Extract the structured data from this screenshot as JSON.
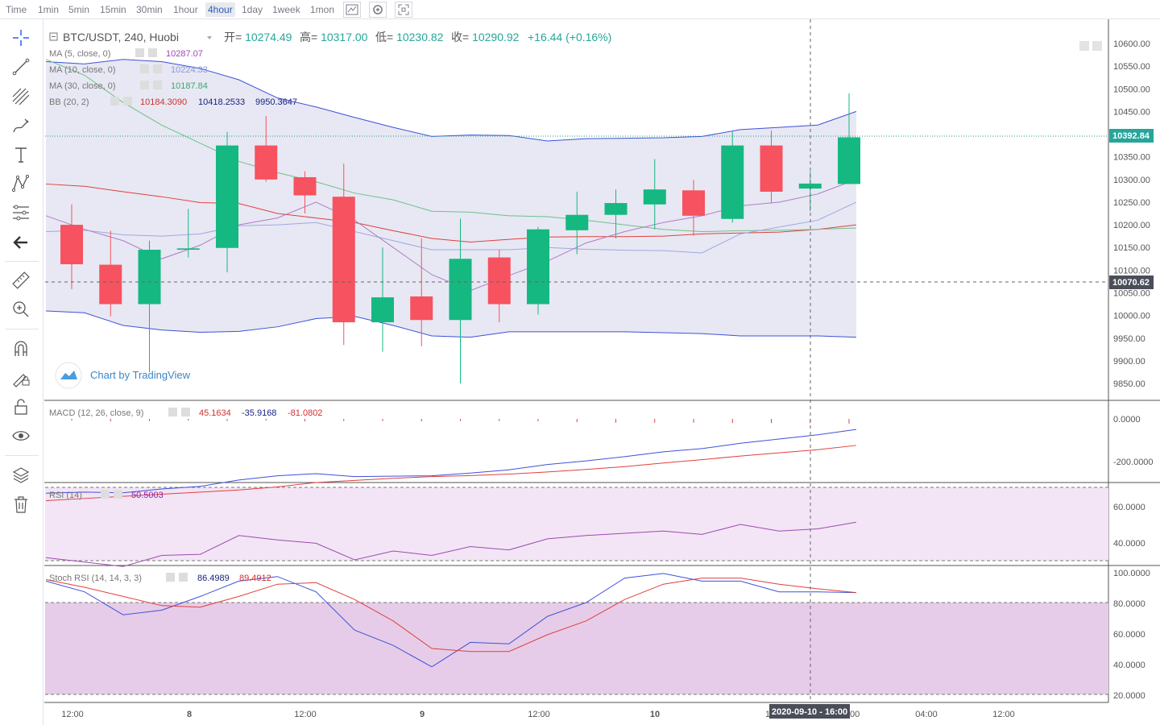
{
  "toolbar": {
    "timeframes": [
      "Time",
      "1min",
      "5min",
      "15min",
      "30min",
      "1hour",
      "4hour",
      "1day",
      "1week",
      "1mon"
    ],
    "active": "4hour",
    "icons": [
      "chart-style-icon",
      "settings-icon",
      "fullscreen-icon"
    ]
  },
  "sidebar": {
    "tools": [
      "crosshair-icon",
      "trendline-icon",
      "fib-icon",
      "brush-icon",
      "text-icon",
      "pattern-icon",
      "measure-lines-icon",
      "back-arrow-icon",
      "ruler-icon",
      "zoom-icon",
      "magnet-icon",
      "lock-draw-icon",
      "unlock-icon",
      "eye-icon",
      "layers-icon",
      "trash-icon"
    ]
  },
  "header": {
    "symbol": "BTC/USDT, 240, Huobi",
    "open_label": "开=",
    "open": "10274.49",
    "high_label": "高=",
    "high": "10317.00",
    "low_label": "低=",
    "low": "10230.82",
    "close_label": "收=",
    "close": "10290.92",
    "change": "+16.44 (+0.16%)"
  },
  "legend": {
    "ma5": {
      "label": "MA (5, close, 0)",
      "value": "10287.07",
      "color": "#9c4bb0"
    },
    "ma10": {
      "label": "MA (10, close, 0)",
      "value": "10224.33",
      "color": "#8b98d8"
    },
    "ma30": {
      "label": "MA (30, close, 0)",
      "value": "10187.84",
      "color": "#3fa66e"
    },
    "bb": {
      "label": "BB (20, 2)",
      "v1": "10184.3090",
      "v2": "10418.2533",
      "v3": "9950.3647"
    }
  },
  "watermark": "Chart by TradingView",
  "price_badges": {
    "current": "10392.84",
    "crosshair": "10070.62"
  },
  "time_badge": "2020-09-10 - 16:00",
  "time_labels": [
    "12:00",
    "8",
    "12:00",
    "9",
    "12:00",
    "10",
    "12",
    "00",
    "04:00",
    "12:00"
  ],
  "panes": {
    "macd": {
      "label": "MACD (12, 26, close, 9)",
      "v1": "45.1634",
      "v2": "-35.9168",
      "v3": "-81.0802",
      "ticks": [
        "0.0000",
        "-200.0000"
      ]
    },
    "rsi": {
      "label": "RSI (14)",
      "value": "50.5003",
      "ticks": [
        "60.0000",
        "40.0000"
      ]
    },
    "stoch": {
      "label": "Stoch RSI (14, 14, 3, 3)",
      "k": "86.4989",
      "d": "89.4912",
      "ticks": [
        "100.0000",
        "80.0000",
        "60.0000",
        "40.0000",
        "20.0000"
      ]
    }
  },
  "chart_data": {
    "type": "candlestick",
    "price_ticks": [
      "10600.00",
      "10550.00",
      "10500.00",
      "10450.00",
      "10400.00",
      "10350.00",
      "10300.00",
      "10250.00",
      "10200.00",
      "10150.00",
      "10100.00",
      "10050.00",
      "10000.00",
      "9950.00",
      "9900.00",
      "9850.00"
    ],
    "candles": [
      {
        "o": 10200,
        "h": 10245,
        "l": 10058,
        "c": 10113
      },
      {
        "o": 10112,
        "h": 10187,
        "l": 9998,
        "c": 10025
      },
      {
        "o": 10025,
        "h": 10165,
        "l": 9875,
        "c": 10145
      },
      {
        "o": 10145,
        "h": 10235,
        "l": 10128,
        "c": 10148
      },
      {
        "o": 10149,
        "h": 10405,
        "l": 10095,
        "c": 10375
      },
      {
        "o": 10375,
        "h": 10440,
        "l": 10295,
        "c": 10300
      },
      {
        "o": 10305,
        "h": 10318,
        "l": 10225,
        "c": 10265
      },
      {
        "o": 10262,
        "h": 10335,
        "l": 9935,
        "c": 9985
      },
      {
        "o": 9985,
        "h": 10150,
        "l": 9920,
        "c": 10040
      },
      {
        "o": 10042,
        "h": 10170,
        "l": 9932,
        "c": 9990
      },
      {
        "o": 9990,
        "h": 10214,
        "l": 9850,
        "c": 10125
      },
      {
        "o": 10128,
        "h": 10145,
        "l": 9985,
        "c": 10025
      },
      {
        "o": 10025,
        "h": 10195,
        "l": 10002,
        "c": 10190
      },
      {
        "o": 10188,
        "h": 10273,
        "l": 10135,
        "c": 10222
      },
      {
        "o": 10222,
        "h": 10278,
        "l": 10170,
        "c": 10248
      },
      {
        "o": 10245,
        "h": 10345,
        "l": 10190,
        "c": 10278
      },
      {
        "o": 10276,
        "h": 10299,
        "l": 10176,
        "c": 10220
      },
      {
        "o": 10213,
        "h": 10406,
        "l": 10205,
        "c": 10375
      },
      {
        "o": 10375,
        "h": 10408,
        "l": 10249,
        "c": 10273
      },
      {
        "o": 10280,
        "h": 10318,
        "l": 10230,
        "c": 10291
      },
      {
        "o": 10290,
        "h": 10490,
        "l": 10290,
        "c": 10393
      }
    ],
    "bb_upper": [
      10560,
      10555,
      10565,
      10560,
      10545,
      10520,
      10480,
      10460,
      10437,
      10415,
      10395,
      10398,
      10397,
      10385,
      10390,
      10391,
      10392,
      10395,
      10410,
      10415,
      10420,
      10450
    ],
    "bb_lower": [
      10010,
      10006,
      9978,
      9968,
      9963,
      9965,
      9975,
      9993,
      9998,
      9978,
      9955,
      9952,
      9964,
      9964,
      9964,
      9964,
      9962,
      9960,
      9955,
      9955,
      9955,
      9952
    ],
    "bb_mid": [
      10290,
      10285,
      10273,
      10262,
      10249,
      10247,
      10225,
      10215,
      10205,
      10187,
      10170,
      10162,
      10168,
      10173,
      10174,
      10174,
      10175,
      10180,
      10182,
      10184,
      10190,
      10200
    ],
    "ma30": [
      10565,
      10530,
      10470,
      10420,
      10380,
      10340,
      10315,
      10295,
      10270,
      10255,
      10230,
      10228,
      10220,
      10218,
      10210,
      10200,
      10190,
      10185,
      10187,
      10188,
      10190,
      10193
    ],
    "ma10": [
      10185,
      10188,
      10178,
      10175,
      10180,
      10198,
      10200,
      10205,
      10185,
      10165,
      10145,
      10145,
      10145,
      10150,
      10146,
      10144,
      10143,
      10138,
      10180,
      10195,
      10210,
      10250
    ],
    "ma5": [
      10220,
      10190,
      10165,
      10125,
      10155,
      10200,
      10215,
      10250,
      10210,
      10150,
      10090,
      10055,
      10088,
      10120,
      10160,
      10185,
      10205,
      10220,
      10242,
      10250,
      10268,
      10300
    ],
    "macd_hist": [
      -8,
      -12,
      -10,
      -8,
      -10,
      -8,
      -12,
      -10,
      -10,
      -12,
      -10,
      -10,
      -12,
      -15,
      -18,
      -18,
      -18,
      -20,
      -20,
      -20,
      -22
    ],
    "macd_line": [
      -350,
      -345,
      -348,
      -330,
      -318,
      -288,
      -268,
      -258,
      -272,
      -270,
      -268,
      -255,
      -240,
      -215,
      -198,
      -178,
      -155,
      -140,
      -115,
      -95,
      -75,
      -50
    ],
    "macd_signal": [
      -385,
      -375,
      -365,
      -355,
      -345,
      -335,
      -320,
      -300,
      -290,
      -280,
      -272,
      -267,
      -260,
      -250,
      -238,
      -225,
      -208,
      -192,
      -175,
      -160,
      -145,
      -125
    ],
    "rsi": [
      37,
      35,
      33,
      38,
      38.5,
      47,
      45,
      43.5,
      36,
      40,
      38,
      42,
      40.5,
      45.5,
      47,
      48,
      49,
      47.5,
      52,
      49,
      50,
      53
    ],
    "stoch_k": [
      94,
      87,
      72,
      75,
      84,
      94,
      97,
      87,
      62,
      52,
      38,
      54,
      53,
      71,
      80,
      96,
      99,
      94,
      94,
      87,
      87,
      86.5
    ],
    "stoch_d": [
      95,
      90,
      84,
      78,
      77,
      84,
      92,
      93,
      82,
      68,
      50,
      48,
      48,
      59,
      68,
      82,
      92,
      96,
      96,
      92,
      89,
      86.5
    ]
  }
}
